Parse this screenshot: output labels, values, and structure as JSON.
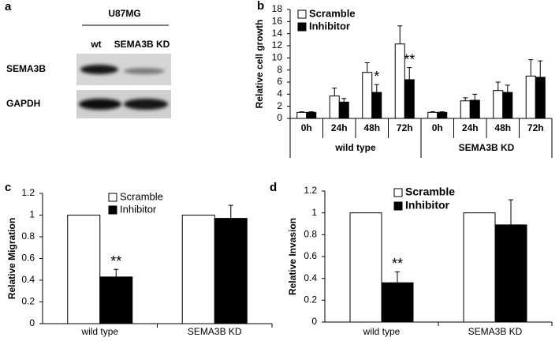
{
  "blot": {
    "label": "a",
    "cell_line": "U87MG",
    "lanes": [
      "wt",
      "SEMA3B KD"
    ],
    "proteins": [
      "SEMA3B",
      "GAPDH"
    ]
  },
  "chart_data": [
    {
      "type": "bar",
      "label": "b",
      "ylabel": "Relative cell growth",
      "categories": [
        "0h",
        "24h",
        "48h",
        "72h",
        "0h",
        "24h",
        "48h",
        "72h"
      ],
      "groups": [
        "wild type",
        "SEMA3B KD"
      ],
      "series": [
        {
          "name": "Scramble",
          "color": "#ffffff",
          "values": [
            1,
            3.7,
            7.6,
            12.3,
            1,
            2.9,
            4.6,
            7.0
          ],
          "errors": [
            0.1,
            1.3,
            1.6,
            3.0,
            0.1,
            0.5,
            1.4,
            2.7
          ]
        },
        {
          "name": "Inhibitor",
          "color": "#000000",
          "values": [
            1,
            2.7,
            4.3,
            6.4,
            1,
            3.0,
            4.3,
            6.8
          ],
          "errors": [
            0.1,
            0.6,
            1.3,
            2.0,
            0.1,
            1.0,
            1.2,
            2.7
          ],
          "significance": [
            null,
            null,
            "*",
            "**",
            null,
            null,
            null,
            null
          ]
        }
      ],
      "ylim": [
        0,
        18
      ],
      "yticks": [
        0,
        2,
        4,
        6,
        8,
        10,
        12,
        14,
        16,
        18
      ]
    },
    {
      "type": "bar",
      "label": "c",
      "ylabel": "Relative Migration",
      "categories": [
        "wild type",
        "SEMA3B KD"
      ],
      "series": [
        {
          "name": "Scramble",
          "color": "#ffffff",
          "values": [
            1,
            1
          ]
        },
        {
          "name": "Inhibitor",
          "color": "#000000",
          "values": [
            0.43,
            0.97
          ],
          "errors": [
            0.07,
            0.12
          ],
          "significance": [
            "**",
            null
          ]
        }
      ],
      "ylim": [
        0,
        1.2
      ],
      "yticks": [
        0,
        0.2,
        0.4,
        0.6,
        0.8,
        1,
        1.2
      ]
    },
    {
      "type": "bar",
      "label": "d",
      "ylabel": "Relative Invasion",
      "categories": [
        "wild type",
        "SEMA3B KD"
      ],
      "series": [
        {
          "name": "Scramble",
          "color": "#ffffff",
          "values": [
            1,
            1
          ]
        },
        {
          "name": "Inhibitor",
          "color": "#000000",
          "values": [
            0.36,
            0.89
          ],
          "errors": [
            0.1,
            0.23
          ],
          "significance": [
            "**",
            null
          ]
        }
      ],
      "ylim": [
        0,
        1.2
      ],
      "yticks": [
        0,
        0.2,
        0.4,
        0.6,
        0.8,
        1,
        1.2
      ]
    }
  ]
}
